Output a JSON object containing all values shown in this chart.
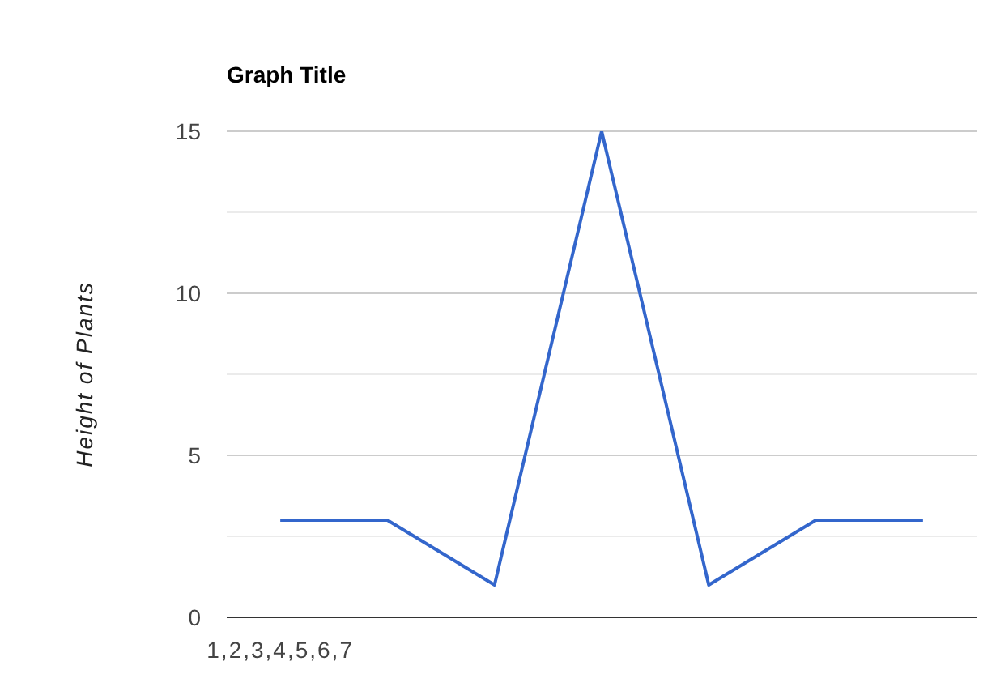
{
  "chart_data": {
    "type": "line",
    "title": "Graph Title",
    "ylabel": "Height of Plants",
    "categories": [
      "1,2,3,4,5,6,7",
      null,
      null,
      null,
      null,
      null,
      null
    ],
    "values": [
      3,
      3,
      1,
      15,
      1,
      3,
      3
    ],
    "color": "#3366cc",
    "ylim": [
      0,
      15
    ],
    "yticks": [
      0,
      {
        "value": 2.5,
        "label": null
      },
      5,
      {
        "value": 7.5,
        "label": null
      },
      10,
      {
        "value": 12.5,
        "label": null
      },
      15
    ],
    "grid": "y",
    "marker": "none",
    "line_style": "solid"
  }
}
